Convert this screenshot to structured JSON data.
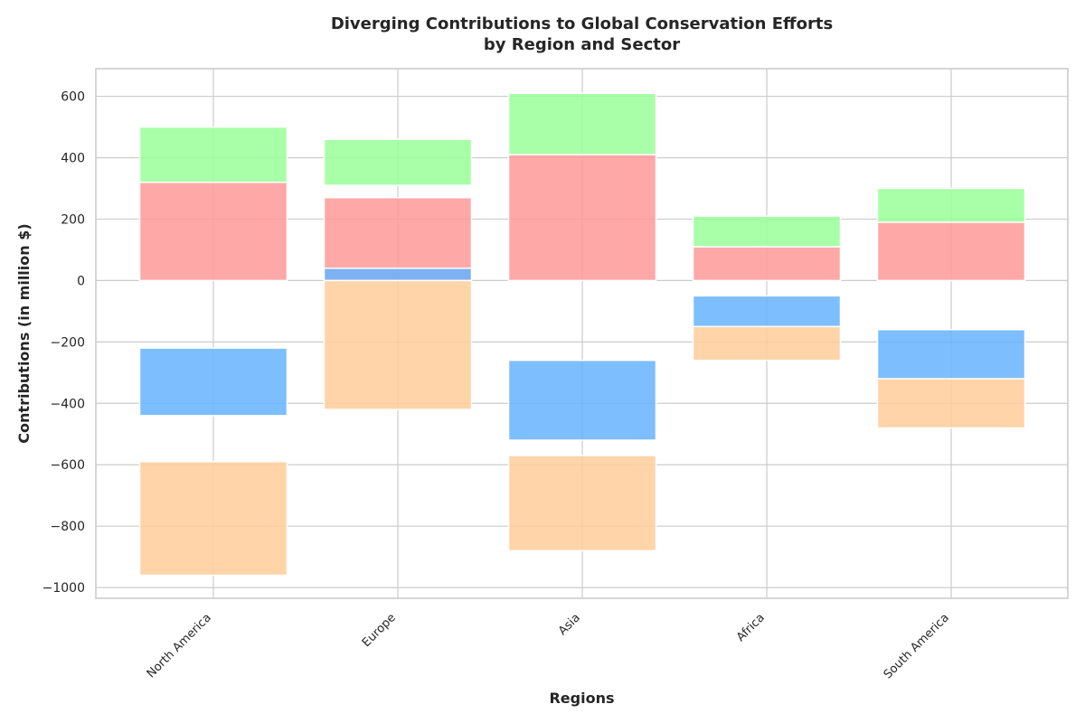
{
  "chart_data": {
    "type": "bar",
    "title_lines": [
      "Diverging Contributions to Global Conservation Efforts",
      "by Region and Sector"
    ],
    "xlabel": "Regions",
    "ylabel": "Contributions (in million $)",
    "categories": [
      "North America",
      "Europe",
      "Asia",
      "Africa",
      "South America"
    ],
    "ylim": [
      -1035,
      690
    ],
    "yticks": [
      600,
      400,
      200,
      0,
      -200,
      -400,
      -600,
      -800,
      -1000
    ],
    "ytick_labels": [
      "600",
      "400",
      "200",
      "0",
      "−200",
      "−400",
      "−600",
      "−800",
      "−1000"
    ],
    "grid": true,
    "legend": "none",
    "series": [
      {
        "color": "#ff9999",
        "ranges": [
          [
            0,
            320
          ],
          [
            0,
            270
          ],
          [
            0,
            410
          ],
          [
            0,
            110
          ],
          [
            0,
            190
          ]
        ]
      },
      {
        "color": "#99ff99",
        "ranges": [
          [
            320,
            500
          ],
          [
            310,
            460
          ],
          [
            410,
            610
          ],
          [
            110,
            210
          ],
          [
            190,
            300
          ]
        ]
      },
      {
        "color": "#66b3ff",
        "ranges": [
          [
            -220,
            -440
          ],
          [
            0,
            40
          ],
          [
            -260,
            -520
          ],
          [
            -50,
            -150
          ],
          [
            -160,
            -320
          ]
        ]
      },
      {
        "color": "#ffcc99",
        "ranges": [
          [
            -590,
            -960
          ],
          [
            0,
            -420
          ],
          [
            -570,
            -880
          ],
          [
            -150,
            -260
          ],
          [
            -320,
            -480
          ]
        ]
      }
    ]
  }
}
